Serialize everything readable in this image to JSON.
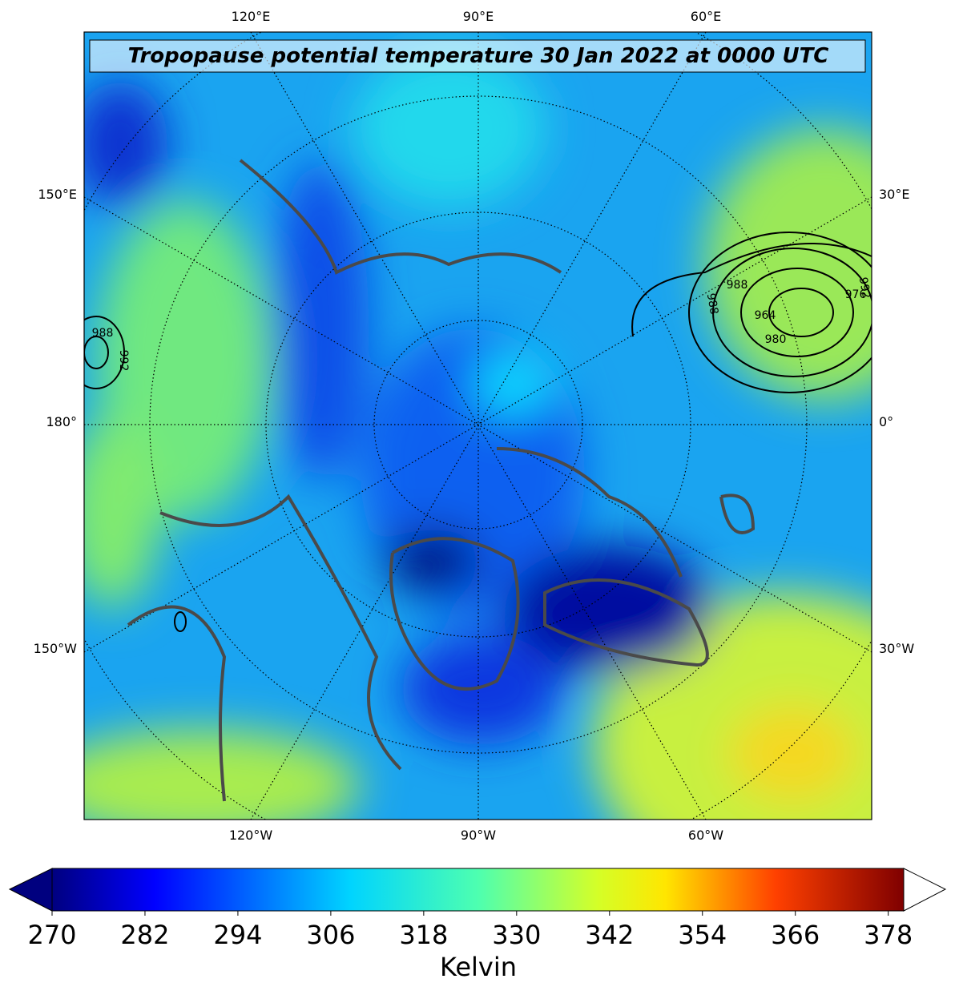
{
  "title": "Tropopause potential temperature 30 Jan 2022 at 0000 UTC",
  "map": {
    "top_labels": [
      "120°E",
      "90°E",
      "60°E"
    ],
    "bottom_labels": [
      "120°W",
      "90°W",
      "60°W"
    ],
    "left_labels": [
      "150°E",
      "180°",
      "150°W"
    ],
    "right_labels": [
      "30°E",
      "0°",
      "30°W"
    ],
    "contour_labels": [
      "988",
      "976",
      "964",
      "980",
      "992",
      "988",
      "992",
      "988"
    ]
  },
  "colorbar": {
    "lim": [
      270,
      380
    ],
    "ticks": [
      270,
      282,
      294,
      306,
      318,
      330,
      342,
      354,
      366,
      378
    ],
    "label": "Kelvin"
  }
}
